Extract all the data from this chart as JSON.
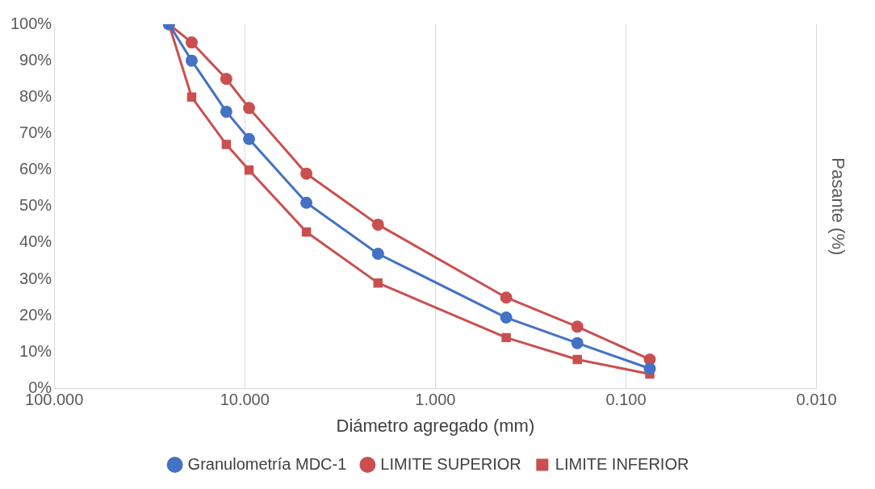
{
  "chart_data": {
    "type": "line",
    "xlabel": "Diámetro agregado (mm)",
    "ylabel": "Pasante (%)",
    "log": "x",
    "xlim": [
      100,
      0.01
    ],
    "xticks": [
      {
        "value": 100,
        "label": "100.000"
      },
      {
        "value": 10,
        "label": "10.000"
      },
      {
        "value": 1,
        "label": "1.000"
      },
      {
        "value": 0.1,
        "label": "0.100"
      },
      {
        "value": 0.01,
        "label": "0.010"
      }
    ],
    "ylim": [
      0,
      100
    ],
    "yticks": [
      {
        "value": 0,
        "label": "0%"
      },
      {
        "value": 10,
        "label": "10%"
      },
      {
        "value": 20,
        "label": "20%"
      },
      {
        "value": 30,
        "label": "30%"
      },
      {
        "value": 40,
        "label": "40%"
      },
      {
        "value": 50,
        "label": "50%"
      },
      {
        "value": 60,
        "label": "60%"
      },
      {
        "value": 70,
        "label": "70%"
      },
      {
        "value": 80,
        "label": "80%"
      },
      {
        "value": 90,
        "label": "90%"
      },
      {
        "value": 100,
        "label": "100%"
      }
    ],
    "x": [
      25,
      19,
      12.5,
      9.5,
      4.75,
      2.0,
      0.425,
      0.18,
      0.075
    ],
    "grid": "x",
    "legend": "bottom",
    "series": [
      {
        "name": "Granulometría MDC-1",
        "color": "#4472c4",
        "marker": "circle",
        "values": [
          100,
          90,
          76,
          68.5,
          51,
          37,
          19.5,
          12.5,
          5.5
        ]
      },
      {
        "name": "LIMITE SUPERIOR",
        "color": "#c9504f",
        "marker": "circle",
        "values": [
          100,
          95,
          85,
          77,
          59,
          45,
          25,
          17,
          8
        ]
      },
      {
        "name": "LIMITE INFERIOR",
        "color": "#c9504f",
        "marker": "square",
        "values": [
          100,
          80,
          67,
          60,
          43,
          29,
          14,
          8,
          4
        ]
      }
    ]
  }
}
